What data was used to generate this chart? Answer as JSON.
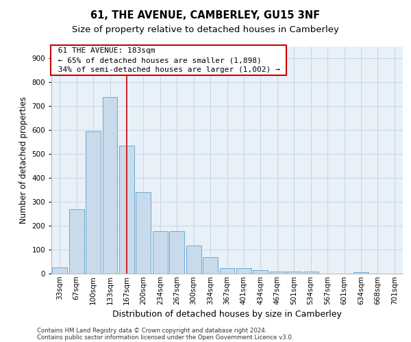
{
  "title": "61, THE AVENUE, CAMBERLEY, GU15 3NF",
  "subtitle": "Size of property relative to detached houses in Camberley",
  "xlabel": "Distribution of detached houses by size in Camberley",
  "ylabel": "Number of detached properties",
  "footer_line1": "Contains HM Land Registry data © Crown copyright and database right 2024.",
  "footer_line2": "Contains public sector information licensed under the Open Government Licence v3.0.",
  "bar_color": "#c9daea",
  "bar_edge_color": "#6aaad4",
  "background_color": "#e8f0f8",
  "categories": [
    "33sqm",
    "67sqm",
    "100sqm",
    "133sqm",
    "167sqm",
    "200sqm",
    "234sqm",
    "267sqm",
    "300sqm",
    "334sqm",
    "367sqm",
    "401sqm",
    "434sqm",
    "467sqm",
    "501sqm",
    "534sqm",
    "567sqm",
    "601sqm",
    "634sqm",
    "668sqm",
    "701sqm"
  ],
  "values": [
    27,
    270,
    595,
    738,
    535,
    340,
    178,
    178,
    118,
    68,
    22,
    22,
    13,
    10,
    8,
    8,
    0,
    0,
    5,
    0,
    0
  ],
  "ylim": [
    0,
    950
  ],
  "yticks": [
    0,
    100,
    200,
    300,
    400,
    500,
    600,
    700,
    800,
    900
  ],
  "annotation_title": "61 THE AVENUE: 183sqm",
  "annotation_line1": "← 65% of detached houses are smaller (1,898)",
  "annotation_line2": "34% of semi-detached houses are larger (1,002) →",
  "annotation_box_color": "#cc0000",
  "vline_color": "#cc0000",
  "vline_position": 4.5,
  "grid_color": "#c5d5e5",
  "title_fontsize": 10.5,
  "subtitle_fontsize": 9.5,
  "axis_label_fontsize": 9,
  "tick_fontsize": 7.5,
  "ylabel_fontsize": 8.5,
  "footer_fontsize": 6.2
}
